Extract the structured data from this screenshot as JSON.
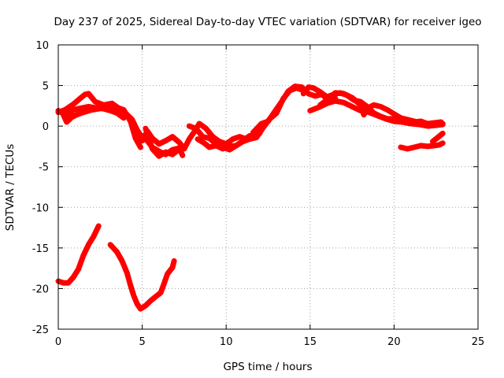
{
  "chart_data": {
    "type": "line",
    "title": "Day 237 of 2025, Sidereal Day-to-day VTEC variation (SDTVAR) for receiver igeo",
    "xlabel": "GPS time / hours",
    "ylabel": "SDTVAR / TECUs",
    "xlim": [
      0,
      25
    ],
    "ylim": [
      -25,
      10
    ],
    "xticks": [
      0,
      5,
      10,
      15,
      20,
      25
    ],
    "yticks": [
      10,
      5,
      0,
      -5,
      -10,
      -15,
      -20,
      -25
    ],
    "grid": true,
    "color": "#ff0000",
    "series": [
      {
        "name": "track-1",
        "points": [
          [
            0,
            1.9
          ],
          [
            0.5,
            1.3
          ],
          [
            0.9,
            2.0
          ],
          [
            1.3,
            2.2
          ],
          [
            1.8,
            2.4
          ],
          [
            2.4,
            2.2
          ],
          [
            3.0,
            2.1
          ],
          [
            3.5,
            2.3
          ],
          [
            3.9,
            2.0
          ],
          [
            4.3,
            0.6
          ],
          [
            4.6,
            -1.5
          ],
          [
            4.9,
            -2.6
          ]
        ]
      },
      {
        "name": "track-2",
        "points": [
          [
            0,
            1.7
          ],
          [
            0.4,
            2.0
          ],
          [
            0.9,
            2.7
          ],
          [
            1.3,
            3.4
          ],
          [
            1.6,
            3.9
          ],
          [
            1.8,
            4.0
          ],
          [
            2.2,
            3.0
          ],
          [
            2.7,
            2.6
          ],
          [
            3.2,
            2.8
          ],
          [
            3.6,
            2.2
          ],
          [
            4.0,
            1.6
          ],
          [
            4.4,
            0.8
          ],
          [
            4.7,
            -0.5
          ],
          [
            5.0,
            -1.4
          ]
        ]
      },
      {
        "name": "track-3",
        "points": [
          [
            0.3,
            1.4
          ],
          [
            0.5,
            0.5
          ],
          [
            0.8,
            1.1
          ],
          [
            1.1,
            1.4
          ],
          [
            1.5,
            1.7
          ],
          [
            2.0,
            2.0
          ],
          [
            2.6,
            2.2
          ],
          [
            3.1,
            1.9
          ],
          [
            3.5,
            1.6
          ],
          [
            3.9,
            1.0
          ]
        ]
      },
      {
        "name": "track-4",
        "points": [
          [
            2.8,
            2.4
          ],
          [
            3.2,
            2.7
          ],
          [
            3.6,
            2.1
          ],
          [
            4.1,
            1.4
          ],
          [
            4.5,
            0.2
          ],
          [
            4.9,
            -1.2
          ],
          [
            5.3,
            -1.8
          ],
          [
            5.6,
            -2.6
          ],
          [
            6.0,
            -3.1
          ],
          [
            6.4,
            -3.5
          ],
          [
            6.8,
            -2.9
          ],
          [
            7.2,
            -2.7
          ],
          [
            7.4,
            -3.6
          ]
        ]
      },
      {
        "name": "track-5",
        "points": [
          [
            4.6,
            -0.5
          ],
          [
            5.0,
            -1.8
          ],
          [
            5.3,
            -0.6
          ],
          [
            5.6,
            -1.5
          ],
          [
            6.0,
            -2.2
          ],
          [
            6.4,
            -1.8
          ],
          [
            6.8,
            -1.3
          ],
          [
            7.2,
            -2.0
          ],
          [
            7.5,
            -2.8
          ],
          [
            7.8,
            -1.6
          ],
          [
            8.1,
            -0.7
          ],
          [
            8.4,
            0.3
          ],
          [
            8.8,
            -0.3
          ],
          [
            9.2,
            -1.3
          ],
          [
            9.6,
            -1.9
          ],
          [
            10.0,
            -2.2
          ],
          [
            10.4,
            -1.6
          ],
          [
            10.8,
            -1.3
          ],
          [
            11.2,
            -1.6
          ],
          [
            11.6,
            -1.4
          ],
          [
            12.0,
            -0.9
          ]
        ]
      },
      {
        "name": "track-6",
        "points": [
          [
            5.2,
            -0.3
          ],
          [
            5.6,
            -2.8
          ],
          [
            6.0,
            -3.7
          ],
          [
            6.4,
            -3.2
          ],
          [
            6.8,
            -3.5
          ],
          [
            7.1,
            -3.0
          ]
        ]
      },
      {
        "name": "track-7",
        "points": [
          [
            7.8,
            0.0
          ],
          [
            8.2,
            -0.3
          ],
          [
            8.6,
            -1.3
          ],
          [
            9.0,
            -1.5
          ],
          [
            9.4,
            -2.2
          ],
          [
            9.8,
            -2.6
          ],
          [
            10.2,
            -2.9
          ],
          [
            10.6,
            -2.4
          ],
          [
            11.0,
            -1.8
          ],
          [
            11.4,
            -1.2
          ],
          [
            11.8,
            -1.3
          ]
        ]
      },
      {
        "name": "track-8",
        "points": [
          [
            8.3,
            -1.6
          ],
          [
            8.7,
            -2.1
          ],
          [
            9.0,
            -2.6
          ],
          [
            9.4,
            -2.4
          ],
          [
            9.8,
            -2.8
          ],
          [
            10.2,
            -2.5
          ],
          [
            10.6,
            -2.4
          ],
          [
            11.0,
            -1.9
          ],
          [
            11.4,
            -1.6
          ],
          [
            11.8,
            -1.4
          ],
          [
            12.2,
            -0.2
          ],
          [
            12.6,
            0.9
          ],
          [
            13.0,
            1.6
          ],
          [
            13.4,
            3.4
          ],
          [
            13.8,
            4.4
          ],
          [
            14.2,
            4.7
          ],
          [
            14.6,
            4.4
          ]
        ]
      },
      {
        "name": "track-9",
        "points": [
          [
            11.6,
            -0.8
          ],
          [
            12.1,
            0.3
          ],
          [
            12.5,
            0.6
          ],
          [
            12.9,
            1.8
          ],
          [
            13.3,
            3.0
          ],
          [
            13.7,
            4.3
          ],
          [
            14.1,
            4.9
          ],
          [
            14.5,
            4.8
          ],
          [
            14.9,
            4.0
          ],
          [
            15.3,
            3.7
          ],
          [
            15.7,
            3.9
          ],
          [
            16.1,
            3.2
          ],
          [
            16.5,
            3.4
          ]
        ]
      },
      {
        "name": "track-10",
        "points": [
          [
            14.6,
            4.0
          ],
          [
            14.9,
            4.8
          ],
          [
            15.2,
            4.7
          ],
          [
            15.6,
            4.2
          ],
          [
            16.0,
            3.6
          ],
          [
            16.4,
            3.9
          ],
          [
            16.8,
            4.1
          ],
          [
            17.2,
            3.8
          ],
          [
            17.6,
            3.2
          ],
          [
            18.0,
            3.0
          ],
          [
            18.4,
            2.4
          ],
          [
            18.8,
            1.6
          ],
          [
            19.2,
            1.2
          ],
          [
            19.6,
            0.9
          ],
          [
            20.0,
            0.9
          ],
          [
            20.4,
            0.6
          ],
          [
            20.8,
            0.8
          ],
          [
            21.2,
            0.5
          ],
          [
            21.6,
            0.6
          ],
          [
            22.0,
            0.3
          ],
          [
            22.4,
            0.4
          ],
          [
            22.8,
            0.5
          ]
        ]
      },
      {
        "name": "track-11",
        "points": [
          [
            15.6,
            2.6
          ],
          [
            16.0,
            3.2
          ],
          [
            16.5,
            4.1
          ],
          [
            17.0,
            4.0
          ],
          [
            17.5,
            3.5
          ],
          [
            18.0,
            2.6
          ],
          [
            18.2,
            1.4
          ],
          [
            18.4,
            2.2
          ],
          [
            18.8,
            2.6
          ],
          [
            19.2,
            2.4
          ],
          [
            19.6,
            2.0
          ],
          [
            20.0,
            1.5
          ],
          [
            20.4,
            1.0
          ],
          [
            20.8,
            0.8
          ],
          [
            21.2,
            0.6
          ],
          [
            21.6,
            0.3
          ],
          [
            22.0,
            0.1
          ],
          [
            22.4,
            0.2
          ],
          [
            22.9,
            0.3
          ]
        ]
      },
      {
        "name": "track-12",
        "points": [
          [
            15.0,
            1.9
          ],
          [
            15.5,
            2.3
          ],
          [
            16.0,
            2.8
          ],
          [
            16.5,
            3.1
          ],
          [
            17.0,
            2.9
          ],
          [
            17.5,
            2.4
          ],
          [
            18.0,
            1.9
          ],
          [
            18.5,
            1.7
          ],
          [
            19.0,
            1.3
          ],
          [
            19.5,
            0.9
          ],
          [
            20.0,
            0.6
          ],
          [
            20.5,
            0.5
          ],
          [
            21.0,
            0.3
          ],
          [
            21.5,
            0.2
          ],
          [
            22.0,
            0.0
          ],
          [
            22.5,
            0.1
          ],
          [
            22.9,
            0.2
          ]
        ]
      },
      {
        "name": "track-13",
        "points": [
          [
            20.4,
            -2.6
          ],
          [
            20.8,
            -2.8
          ],
          [
            21.2,
            -2.6
          ],
          [
            21.6,
            -2.4
          ],
          [
            22.0,
            -2.5
          ],
          [
            22.4,
            -2.4
          ],
          [
            22.7,
            -2.3
          ],
          [
            22.9,
            -2.1
          ]
        ]
      },
      {
        "name": "track-14",
        "points": [
          [
            22.3,
            -1.9
          ],
          [
            22.6,
            -1.4
          ],
          [
            22.9,
            -0.9
          ]
        ]
      },
      {
        "name": "track-15",
        "points": [
          [
            0,
            -19.1
          ],
          [
            0.3,
            -19.3
          ],
          [
            0.6,
            -19.3
          ],
          [
            0.9,
            -18.6
          ],
          [
            1.2,
            -17.6
          ],
          [
            1.5,
            -15.9
          ],
          [
            1.8,
            -14.6
          ],
          [
            2.1,
            -13.6
          ],
          [
            2.4,
            -12.3
          ]
        ]
      },
      {
        "name": "track-16",
        "points": [
          [
            3.1,
            -14.6
          ],
          [
            3.5,
            -15.5
          ],
          [
            3.8,
            -16.6
          ],
          [
            4.1,
            -18.1
          ],
          [
            4.3,
            -19.6
          ],
          [
            4.5,
            -20.9
          ],
          [
            4.7,
            -21.9
          ],
          [
            4.9,
            -22.5
          ],
          [
            5.2,
            -22.1
          ],
          [
            5.5,
            -21.5
          ],
          [
            5.8,
            -21.0
          ],
          [
            6.1,
            -20.5
          ],
          [
            6.3,
            -19.4
          ],
          [
            6.5,
            -18.2
          ],
          [
            6.8,
            -17.4
          ],
          [
            6.9,
            -16.6
          ]
        ]
      }
    ]
  }
}
